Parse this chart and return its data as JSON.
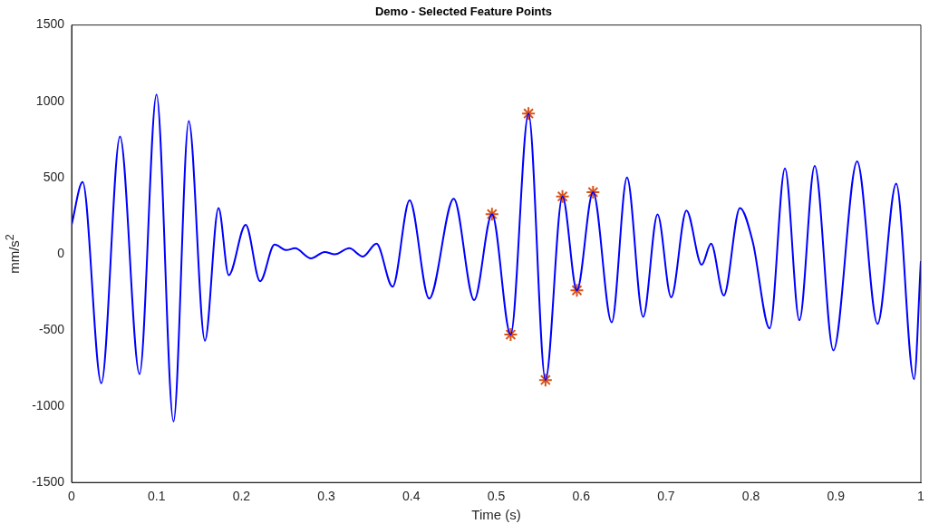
{
  "chart_data": {
    "type": "line",
    "title": "Demo - Selected Feature Points",
    "xlabel": "Time (s)",
    "ylabel": "mm/s$^{2}$",
    "xlim": [
      0,
      1
    ],
    "xticks": [
      0,
      0.1,
      0.2,
      0.3,
      0.4,
      0.5,
      0.6,
      0.7,
      0.8,
      0.9,
      1
    ],
    "ylim": [
      -1500,
      1500
    ],
    "yticks": [
      -1500,
      -1000,
      -500,
      0,
      500,
      1000,
      1500
    ],
    "grid": false,
    "legend": false,
    "series": [
      {
        "type": "line",
        "color": "#0000ff",
        "marker": "none",
        "line_style": "solid",
        "x": [
          0,
          0.013,
          0.035,
          0.057,
          0.08,
          0.1,
          0.12,
          0.138,
          0.157,
          0.173,
          0.185,
          0.205,
          0.222,
          0.239,
          0.253,
          0.263,
          0.282,
          0.298,
          0.31,
          0.327,
          0.343,
          0.359,
          0.378,
          0.398,
          0.421,
          0.45,
          0.474,
          0.495,
          0.517,
          0.538,
          0.558,
          0.578,
          0.595,
          0.614,
          0.636,
          0.654,
          0.673,
          0.69,
          0.706,
          0.724,
          0.742,
          0.753,
          0.768,
          0.787,
          0.802,
          0.822,
          0.84,
          0.857,
          0.875,
          0.897,
          0.925,
          0.949,
          0.971,
          0.992,
          1
        ],
        "values": [
          190,
          470,
          -850,
          770,
          -790,
          1045,
          -1100,
          870,
          -570,
          300,
          -140,
          190,
          -180,
          60,
          24,
          36,
          -30,
          12,
          -4,
          36,
          -18,
          66,
          -216,
          350,
          -294,
          360,
          -304,
          260,
          -530,
          920,
          -828,
          376,
          -240,
          404,
          -450,
          500,
          -414,
          258,
          -286,
          284,
          -72,
          66,
          -274,
          300,
          80,
          -490,
          560,
          -436,
          576,
          -634,
          606,
          -460,
          460,
          -822,
          -48
        ]
      },
      {
        "type": "scatter",
        "color": "#d95319",
        "marker": "cross",
        "x": [
          0.495,
          0.517,
          0.538,
          0.558,
          0.578,
          0.595,
          0.614
        ],
        "values": [
          260,
          -530,
          920,
          -828,
          376,
          -240,
          404
        ]
      }
    ]
  }
}
